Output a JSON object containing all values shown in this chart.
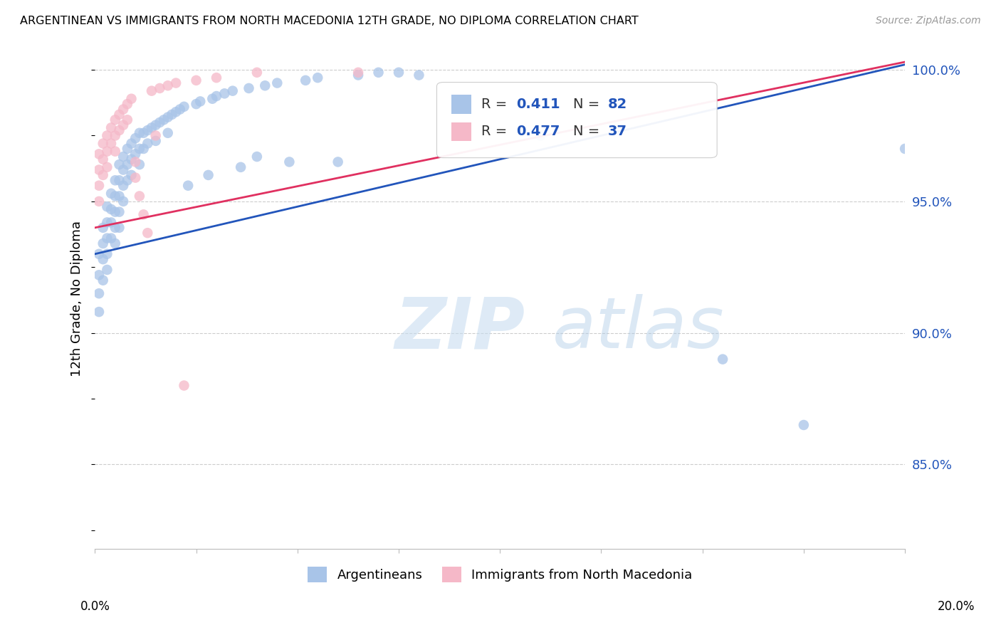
{
  "title": "ARGENTINEAN VS IMMIGRANTS FROM NORTH MACEDONIA 12TH GRADE, NO DIPLOMA CORRELATION CHART",
  "source": "Source: ZipAtlas.com",
  "ylabel": "12th Grade, No Diploma",
  "yticks": [
    "100.0%",
    "95.0%",
    "90.0%",
    "85.0%"
  ],
  "ytick_vals": [
    1.0,
    0.95,
    0.9,
    0.85
  ],
  "legend_label_blue": "Argentineans",
  "legend_label_pink": "Immigrants from North Macedonia",
  "blue_r": "0.411",
  "blue_n": "82",
  "pink_r": "0.477",
  "pink_n": "37",
  "blue_color": "#a8c4e8",
  "pink_color": "#f5b8c8",
  "blue_line_color": "#2255bb",
  "pink_line_color": "#e03060",
  "bg_color": "#ffffff",
  "grid_color": "#cccccc",
  "xlim": [
    0.0,
    0.2
  ],
  "ylim": [
    0.818,
    1.008
  ],
  "blue_scatter_x": [
    0.001,
    0.001,
    0.001,
    0.001,
    0.002,
    0.002,
    0.002,
    0.002,
    0.003,
    0.003,
    0.003,
    0.003,
    0.003,
    0.004,
    0.004,
    0.004,
    0.004,
    0.005,
    0.005,
    0.005,
    0.005,
    0.005,
    0.006,
    0.006,
    0.006,
    0.006,
    0.006,
    0.007,
    0.007,
    0.007,
    0.007,
    0.008,
    0.008,
    0.008,
    0.009,
    0.009,
    0.009,
    0.01,
    0.01,
    0.011,
    0.011,
    0.011,
    0.012,
    0.012,
    0.013,
    0.013,
    0.014,
    0.015,
    0.015,
    0.016,
    0.017,
    0.018,
    0.018,
    0.019,
    0.02,
    0.021,
    0.022,
    0.023,
    0.025,
    0.026,
    0.028,
    0.029,
    0.03,
    0.032,
    0.034,
    0.036,
    0.038,
    0.04,
    0.042,
    0.045,
    0.048,
    0.052,
    0.055,
    0.06,
    0.065,
    0.07,
    0.075,
    0.08,
    0.11,
    0.155,
    0.175,
    0.2
  ],
  "blue_scatter_y": [
    0.93,
    0.922,
    0.915,
    0.908,
    0.94,
    0.934,
    0.928,
    0.92,
    0.948,
    0.942,
    0.936,
    0.93,
    0.924,
    0.953,
    0.947,
    0.942,
    0.936,
    0.958,
    0.952,
    0.946,
    0.94,
    0.934,
    0.964,
    0.958,
    0.952,
    0.946,
    0.94,
    0.967,
    0.962,
    0.956,
    0.95,
    0.97,
    0.964,
    0.958,
    0.972,
    0.966,
    0.96,
    0.974,
    0.968,
    0.976,
    0.97,
    0.964,
    0.976,
    0.97,
    0.977,
    0.972,
    0.978,
    0.979,
    0.973,
    0.98,
    0.981,
    0.982,
    0.976,
    0.983,
    0.984,
    0.985,
    0.986,
    0.956,
    0.987,
    0.988,
    0.96,
    0.989,
    0.99,
    0.991,
    0.992,
    0.963,
    0.993,
    0.967,
    0.994,
    0.995,
    0.965,
    0.996,
    0.997,
    0.965,
    0.998,
    0.999,
    0.999,
    0.998,
    0.975,
    0.89,
    0.865,
    0.97
  ],
  "pink_scatter_x": [
    0.001,
    0.001,
    0.001,
    0.001,
    0.002,
    0.002,
    0.002,
    0.003,
    0.003,
    0.003,
    0.004,
    0.004,
    0.005,
    0.005,
    0.005,
    0.006,
    0.006,
    0.007,
    0.007,
    0.008,
    0.008,
    0.009,
    0.01,
    0.01,
    0.011,
    0.012,
    0.013,
    0.014,
    0.015,
    0.016,
    0.018,
    0.02,
    0.022,
    0.025,
    0.03,
    0.04,
    0.065
  ],
  "pink_scatter_y": [
    0.968,
    0.962,
    0.956,
    0.95,
    0.972,
    0.966,
    0.96,
    0.975,
    0.969,
    0.963,
    0.978,
    0.972,
    0.981,
    0.975,
    0.969,
    0.983,
    0.977,
    0.985,
    0.979,
    0.987,
    0.981,
    0.989,
    0.965,
    0.959,
    0.952,
    0.945,
    0.938,
    0.992,
    0.975,
    0.993,
    0.994,
    0.995,
    0.88,
    0.996,
    0.997,
    0.999,
    0.999
  ]
}
